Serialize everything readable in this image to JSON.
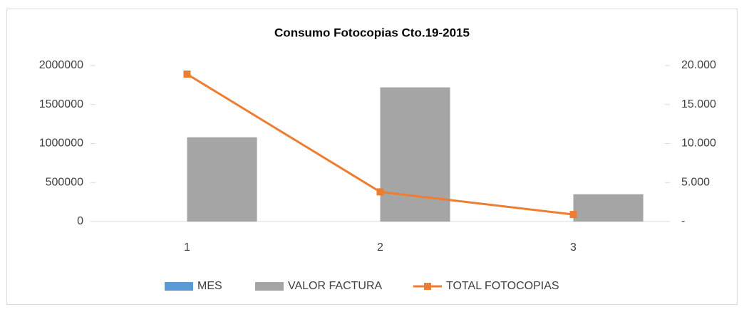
{
  "chart_data": {
    "type": "bar_line",
    "title": "Consumo Fotocopias Cto.19-2015",
    "categories": [
      "1",
      "2",
      "3"
    ],
    "series": [
      {
        "name": "MES",
        "color": "#5b9bd5",
        "type": "bar",
        "values": [
          1,
          2,
          3
        ]
      },
      {
        "name": "VALOR FACTURA",
        "color": "#a5a5a5",
        "type": "bar",
        "values": [
          1080000,
          1720000,
          350000
        ]
      },
      {
        "name": "TOTAL FOTOCOPIAS",
        "color": "#ed7d31",
        "type": "line",
        "axis": "y2",
        "values": [
          18900,
          3800,
          900
        ]
      }
    ],
    "ylim": [
      0,
      2000000
    ],
    "yticks": [
      0,
      500000,
      1000000,
      1500000,
      2000000
    ],
    "y2lim": [
      0,
      20000
    ],
    "y2ticks": [
      {
        "value": 0,
        "label": "-"
      },
      {
        "value": 5000,
        "label": "5.000"
      },
      {
        "value": 10000,
        "label": "10.000"
      },
      {
        "value": 15000,
        "label": "15.000"
      },
      {
        "value": 20000,
        "label": "20.000"
      }
    ],
    "grid": false,
    "legend": "bottom"
  }
}
